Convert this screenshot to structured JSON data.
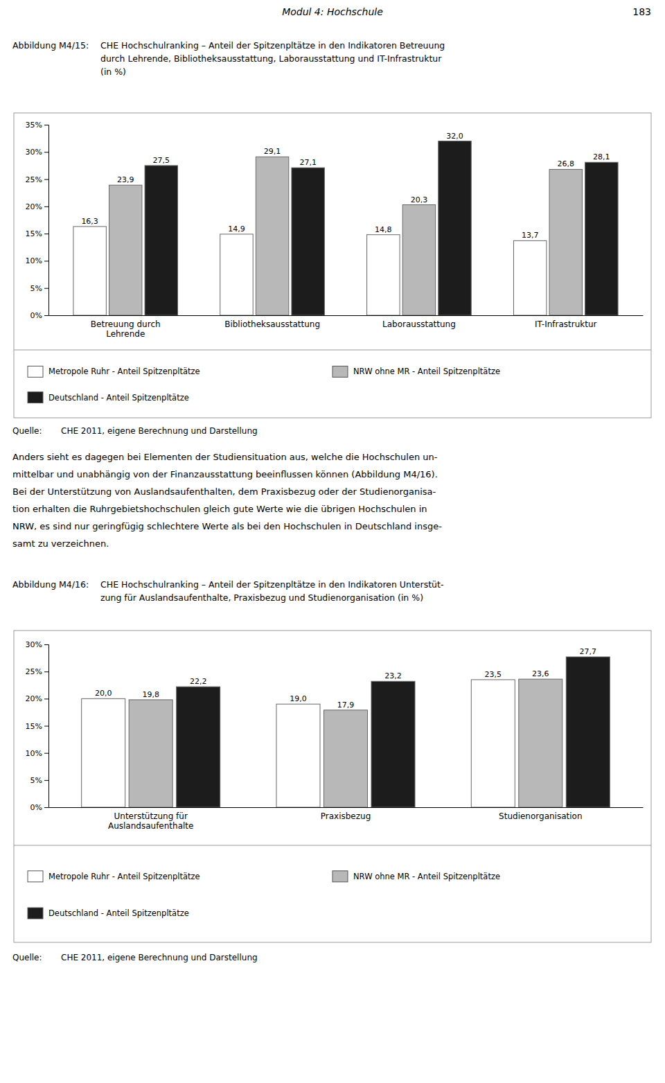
{
  "page_header": "Modul 4: Hochschule",
  "page_number": "183",
  "body_lines": [
    "Anders sieht es dagegen bei Elementen der Studiensituation aus, welche die Hochschulen un-",
    "mittelbar und unabhängig von der Finanzausstattung beeinflussen können (Abbildung M4/16).",
    "Bei der Unterstützung von Auslandsaufenthalten, dem Praxisbezug oder der Studienorganisa-",
    "tion erhalten die Ruhrgebietshochschulen gleich gute Werte wie die übrigen Hochschulen in",
    "NRW, es sind nur geringfügig schlechtere Werte als bei den Hochschulen in Deutschland insge-",
    "samt zu verzeichnen."
  ],
  "chart_data": [
    {
      "type": "bar",
      "label": "Abbildung M4/15:",
      "title": [
        "CHE Hochschulranking – Anteil der Spitzenpltätze in den Indikatoren Betreuung",
        "durch Lehrende, Bibliotheksausstattung, Laborausstattung und IT-Infrastruktur",
        "(in %)"
      ],
      "categories": [
        "Betreuung durch\nLehrende",
        "Bibliotheksausstattung",
        "Laborausstattung",
        "IT-Infrastruktur"
      ],
      "series": [
        {
          "name": "Metropole Ruhr - Anteil Spitzenpltätze",
          "color": "#ffffff",
          "values": [
            16.3,
            14.9,
            14.8,
            13.7
          ],
          "value_labels": [
            "16,3",
            "14,9",
            "14,8",
            "13,7"
          ]
        },
        {
          "name": "NRW ohne MR - Anteil Spitzenpltätze",
          "color": "#b8b8b8",
          "values": [
            23.9,
            29.1,
            20.3,
            26.8
          ],
          "value_labels": [
            "23,9",
            "29,1",
            "20,3",
            "26,8"
          ]
        },
        {
          "name": "Deutschland - Anteil Spitzenpltätze",
          "color": "#1c1c1c",
          "values": [
            27.5,
            27.1,
            32.0,
            28.1
          ],
          "value_labels": [
            "27,5",
            "27,1",
            "32,0",
            "28,1"
          ]
        }
      ],
      "ylim": [
        0,
        35
      ],
      "yticks": [
        {
          "value": 0,
          "label": "0%"
        },
        {
          "value": 5,
          "label": "5%"
        },
        {
          "value": 10,
          "label": "10%"
        },
        {
          "value": 15,
          "label": "15%"
        },
        {
          "value": 20,
          "label": "20%"
        },
        {
          "value": 25,
          "label": "25%"
        },
        {
          "value": 30,
          "label": "30%"
        },
        {
          "value": 35,
          "label": "35%"
        }
      ],
      "grid": false,
      "legend": "bottom",
      "data_labels": true,
      "source_label": "Quelle:",
      "source": "CHE 2011, eigene Berechnung und Darstellung"
    },
    {
      "type": "bar",
      "label": "Abbildung M4/16:",
      "title": [
        "CHE Hochschulranking – Anteil der Spitzenpltätze in den Indikatoren Unterstüt-",
        "zung für Auslandsaufenthalte, Praxisbezug und Studienorganisation (in %)"
      ],
      "categories": [
        "Unterstützung für\nAuslandsaufenthalte",
        "Praxisbezug",
        "Studienorganisation"
      ],
      "series": [
        {
          "name": "Metropole Ruhr - Anteil Spitzenpltätze",
          "color": "#ffffff",
          "values": [
            20.0,
            19.0,
            23.5
          ],
          "value_labels": [
            "20,0",
            "19,0",
            "23,5"
          ]
        },
        {
          "name": "NRW ohne MR - Anteil Spitzenpltätze",
          "color": "#b8b8b8",
          "values": [
            19.8,
            17.9,
            23.6
          ],
          "value_labels": [
            "19,8",
            "17,9",
            "23,6"
          ]
        },
        {
          "name": "Deutschland - Anteil Spitzenpltätze",
          "color": "#1c1c1c",
          "values": [
            22.2,
            23.2,
            27.7
          ],
          "value_labels": [
            "22,2",
            "23,2",
            "27,7"
          ]
        }
      ],
      "ylim": [
        0,
        30
      ],
      "yticks": [
        {
          "value": 0,
          "label": "0%"
        },
        {
          "value": 5,
          "label": "5%"
        },
        {
          "value": 10,
          "label": "10%"
        },
        {
          "value": 15,
          "label": "15%"
        },
        {
          "value": 20,
          "label": "20%"
        },
        {
          "value": 25,
          "label": "25%"
        },
        {
          "value": 30,
          "label": "30%"
        }
      ],
      "grid": false,
      "legend": "bottom",
      "data_labels": true,
      "source_label": "Quelle:",
      "source": "CHE 2011, eigene Berechnung und Darstellung"
    }
  ]
}
